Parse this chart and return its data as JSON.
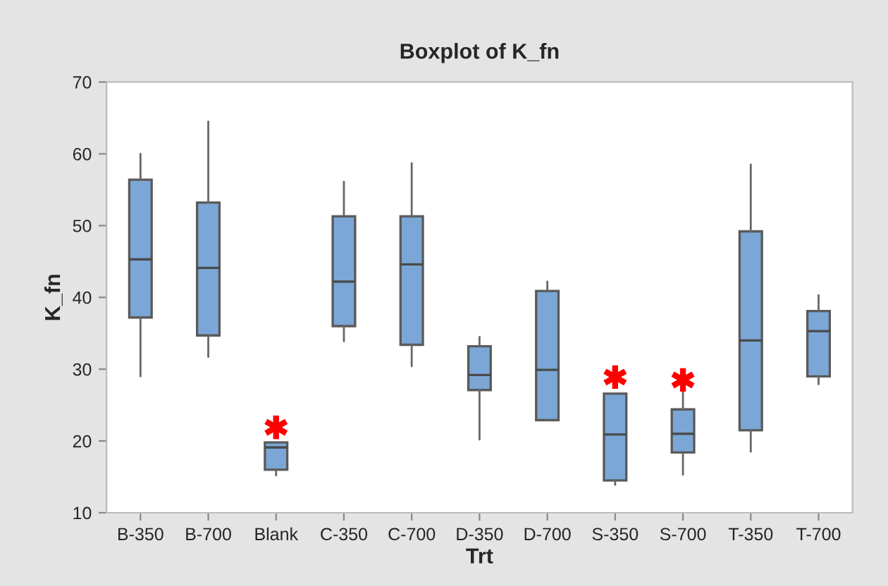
{
  "chart_data": {
    "type": "box",
    "title": "Boxplot of K_fn",
    "xlabel": "Trt",
    "ylabel": "K_fn",
    "categories": [
      "B-350",
      "B-700",
      "Blank",
      "C-350",
      "C-700",
      "D-350",
      "D-700",
      "S-350",
      "S-700",
      "T-350",
      "T-700"
    ],
    "series": [
      {
        "color": "#7ba7d7",
        "boxes": [
          {
            "low": 29.0,
            "q1": 37.2,
            "median": 45.3,
            "q3": 56.4,
            "high": 60.0
          },
          {
            "low": 31.7,
            "q1": 34.7,
            "median": 44.1,
            "q3": 53.2,
            "high": 64.5
          },
          {
            "low": 15.2,
            "q1": 16.0,
            "median": 19.1,
            "q3": 19.8,
            "high": 19.8,
            "outliers": [
              21.9
            ]
          },
          {
            "low": 33.9,
            "q1": 36.0,
            "median": 42.2,
            "q3": 51.3,
            "high": 56.1
          },
          {
            "low": 30.4,
            "q1": 33.4,
            "median": 44.6,
            "q3": 51.3,
            "high": 58.7
          },
          {
            "low": 20.2,
            "q1": 27.1,
            "median": 29.2,
            "q3": 33.2,
            "high": 34.5
          },
          {
            "low": 22.9,
            "q1": 22.9,
            "median": 29.9,
            "q3": 40.9,
            "high": 42.2
          },
          {
            "low": 13.9,
            "q1": 14.5,
            "median": 20.9,
            "q3": 26.6,
            "high": 26.6,
            "outliers": [
              28.9
            ]
          },
          {
            "low": 15.3,
            "q1": 18.4,
            "median": 21.0,
            "q3": 24.4,
            "high": 27.6,
            "outliers": [
              28.5
            ]
          },
          {
            "low": 18.5,
            "q1": 21.5,
            "median": 34.0,
            "q3": 49.2,
            "high": 58.5
          },
          {
            "low": 27.9,
            "q1": 29.0,
            "median": 35.3,
            "q3": 38.1,
            "high": 40.3
          }
        ]
      }
    ],
    "ylim": [
      10,
      70
    ],
    "yticks": [
      10,
      20,
      30,
      40,
      50,
      60,
      70
    ],
    "grid": false,
    "legend": false,
    "marker": "star"
  }
}
